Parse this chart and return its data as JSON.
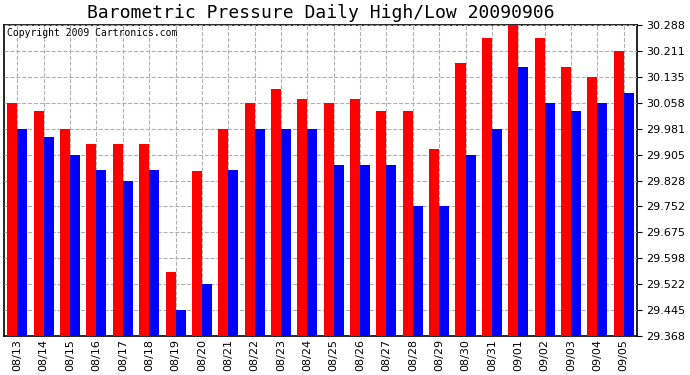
{
  "title": "Barometric Pressure Daily High/Low 20090906",
  "copyright": "Copyright 2009 Cartronics.com",
  "dates": [
    "08/13",
    "08/14",
    "08/15",
    "08/16",
    "08/17",
    "08/18",
    "08/19",
    "08/20",
    "08/21",
    "08/22",
    "08/23",
    "08/24",
    "08/25",
    "08/26",
    "08/27",
    "08/28",
    "08/29",
    "08/30",
    "08/31",
    "09/01",
    "09/02",
    "09/03",
    "09/04",
    "09/05"
  ],
  "highs": [
    30.058,
    30.035,
    29.981,
    29.935,
    29.935,
    29.935,
    29.558,
    29.855,
    29.981,
    30.058,
    30.1,
    30.07,
    30.058,
    30.07,
    30.035,
    30.035,
    29.92,
    30.175,
    30.25,
    30.288,
    30.25,
    30.165,
    30.135,
    30.211
  ],
  "lows": [
    29.981,
    29.958,
    29.905,
    29.858,
    29.828,
    29.858,
    29.445,
    29.522,
    29.858,
    29.981,
    29.981,
    29.981,
    29.875,
    29.875,
    29.875,
    29.752,
    29.752,
    29.905,
    29.981,
    30.165,
    30.058,
    30.035,
    30.058,
    30.088
  ],
  "ylim_min": 29.368,
  "ylim_max": 30.288,
  "yticks": [
    29.368,
    29.445,
    29.522,
    29.598,
    29.675,
    29.752,
    29.828,
    29.905,
    29.981,
    30.058,
    30.135,
    30.211,
    30.288
  ],
  "high_color": "#ff0000",
  "low_color": "#0000ff",
  "bg_color": "#ffffff",
  "plot_bg_color": "#ffffff",
  "grid_color": "#b0b0b0",
  "title_fontsize": 13,
  "tick_fontsize": 8,
  "bar_width": 0.38
}
